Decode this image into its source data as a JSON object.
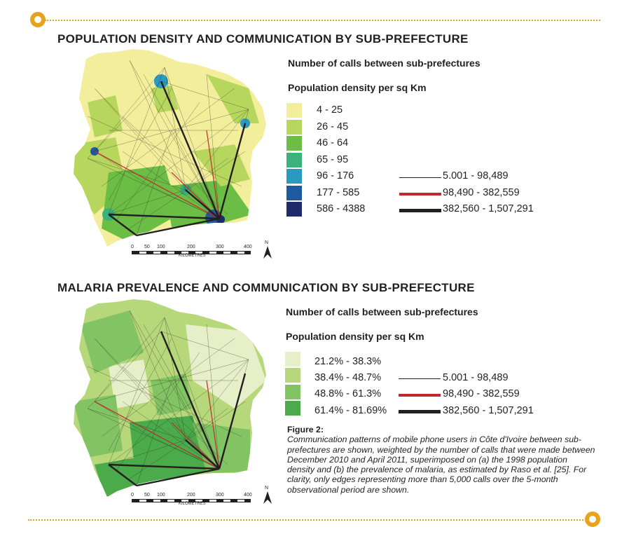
{
  "colors": {
    "accent": "#e8a21b",
    "density": [
      "#f3ee9b",
      "#b7d65d",
      "#6cbd45",
      "#3ab27a",
      "#2a9ac0",
      "#1e5aa0",
      "#1f2a6b"
    ],
    "malaria": [
      "#e7efc9",
      "#b6d77a",
      "#82c463",
      "#4bab4a"
    ],
    "edge_low": "#231f20",
    "edge_mid": "#c1272d",
    "edge_high": "#231f20"
  },
  "section1": {
    "title": "POPULATION DENSITY AND COMMUNICATION BY SUB-PREFECTURE",
    "legend_calls_title": "Number of calls between sub-prefectures",
    "legend_density_title": "Population density per sq Km",
    "density_classes": [
      "4 - 25",
      "26 - 45",
      "46 - 64",
      "65 - 95",
      "96 - 176",
      "177 - 585",
      "586 - 4388"
    ],
    "call_classes": [
      "5.001 - 98,489",
      "98,490 - 382,559",
      "382,560 - 1,507,291"
    ],
    "scale": {
      "ticks": [
        "0",
        "50",
        "100",
        "200",
        "300",
        "400"
      ],
      "unit": "KILOMETRES",
      "north": "N"
    }
  },
  "section2": {
    "title": "MALARIA PREVALENCE AND COMMUNICATION BY SUB-PREFECTURE",
    "legend_calls_title": "Number of calls between sub-prefectures",
    "legend_density_title": "Population density per sq Km",
    "malaria_classes": [
      "21.2% - 38.3%",
      "38.4% - 48.7%",
      "48.8% - 61.3%",
      "61.4% - 81.69%"
    ],
    "call_classes": [
      "5.001 - 98,489",
      "98,490 - 382,559",
      "382,560 - 1,507,291"
    ],
    "scale": {
      "ticks": [
        "0",
        "50",
        "100",
        "200",
        "300",
        "400"
      ],
      "unit": "KILOMETRES",
      "north": "N"
    }
  },
  "caption": {
    "title": "Figure 2:",
    "body": "Communication patterns of mobile phone users in Côte d'Ivoire between sub-prefectures are shown, weighted by the number of calls that were made between December 2010 and April 2011, superimposed on (a) the 1998 population density and (b) the prevalence of malaria, as estimated by Raso et al. [25]. For clarity, only edges representing more than 5,000 calls over the 5-month observational period are shown."
  }
}
